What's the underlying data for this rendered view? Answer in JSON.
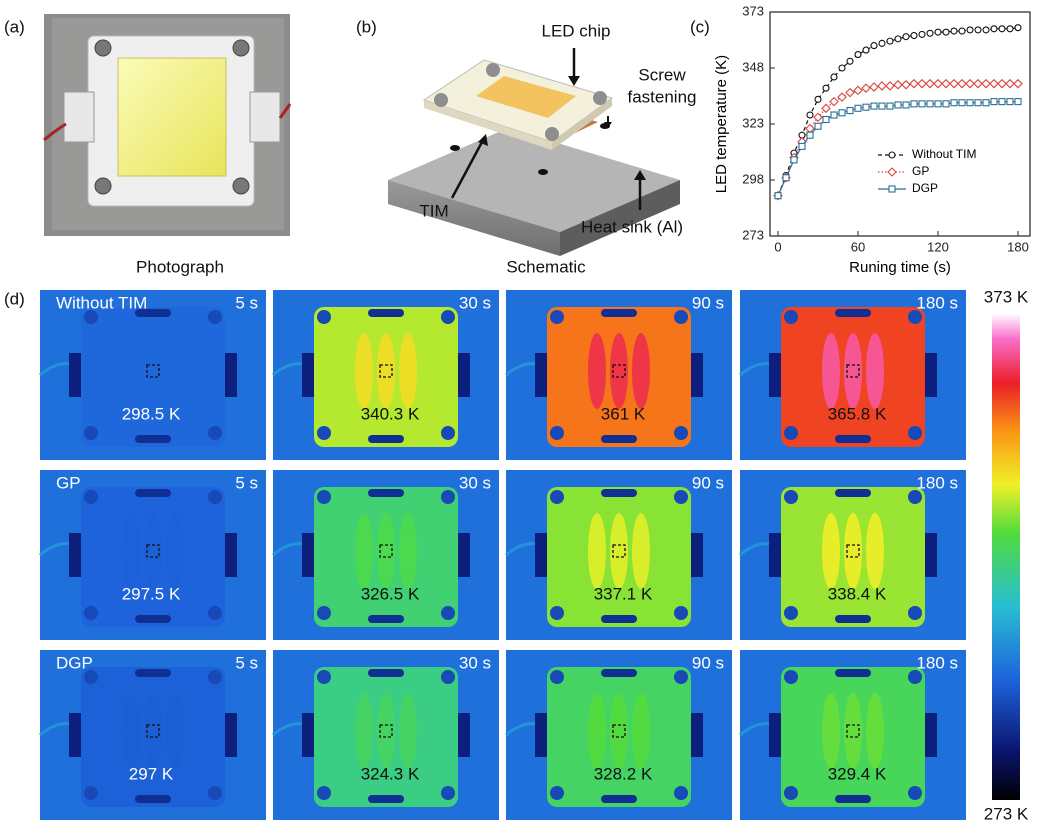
{
  "panel_labels": [
    "(a)",
    "(b)",
    "(c)",
    "(d)"
  ],
  "captions": {
    "photograph": "Photograph",
    "schematic": "Schematic"
  },
  "schematic": {
    "led_chip": "LED chip",
    "screw_line1": "Screw",
    "screw_line2": "fastening",
    "tim": "TIM",
    "heat_sink": "Heat sink (Al)"
  },
  "chart_data": {
    "type": "line",
    "xlabel": "Runing time (s)",
    "ylabel": "LED temperature (K)",
    "x": [
      0,
      6,
      12,
      18,
      24,
      30,
      36,
      42,
      48,
      54,
      60,
      66,
      72,
      78,
      84,
      90,
      96,
      102,
      108,
      114,
      120,
      126,
      132,
      138,
      144,
      150,
      156,
      162,
      168,
      174,
      180
    ],
    "series": [
      {
        "name": "Without TIM",
        "color": "#111111",
        "marker": "circle",
        "line_style": "dashed",
        "values": [
          291,
          300,
          310,
          318,
          327,
          334,
          339,
          344,
          348,
          351,
          354,
          356,
          358,
          359,
          360,
          361,
          362,
          362.5,
          363,
          363.5,
          364,
          364,
          364.5,
          364.5,
          365,
          365,
          365,
          365.5,
          365.5,
          365.5,
          366
        ]
      },
      {
        "name": "GP",
        "color": "#d9453b",
        "marker": "diamond",
        "line_style": "dotted",
        "values": [
          291,
          299,
          308,
          315,
          321,
          326,
          330,
          333,
          335,
          337,
          338,
          339,
          339.5,
          340,
          340,
          340.5,
          340.5,
          341,
          341,
          341,
          341,
          341,
          341,
          341,
          341,
          341,
          341,
          341,
          341,
          341,
          341
        ]
      },
      {
        "name": "DGP",
        "color": "#2a6f97",
        "marker": "square",
        "line_style": "solid",
        "values": [
          291,
          299,
          307,
          313,
          318,
          322,
          325,
          327,
          328,
          329,
          330,
          330.5,
          331,
          331,
          331,
          331.5,
          331.5,
          332,
          332,
          332,
          332,
          332,
          332.5,
          332.5,
          332.5,
          332.5,
          332.5,
          333,
          333,
          333,
          333
        ]
      }
    ],
    "xlim": [
      -6,
      189
    ],
    "ylim": [
      273,
      373
    ],
    "xticks": [
      0,
      60,
      120,
      180
    ],
    "yticks": [
      273,
      298,
      323,
      348,
      373
    ]
  },
  "thermal": {
    "rows": [
      {
        "name": "Without TIM",
        "cells": [
          {
            "time": "5 s",
            "value": 298.5,
            "label": "298.5 K"
          },
          {
            "time": "30 s",
            "value": 340.3,
            "label": "340.3 K"
          },
          {
            "time": "90 s",
            "value": 361,
            "label": "361 K"
          },
          {
            "time": "180 s",
            "value": 365.8,
            "label": "365.8 K"
          }
        ]
      },
      {
        "name": "GP",
        "cells": [
          {
            "time": "5 s",
            "value": 297.5,
            "label": "297.5 K"
          },
          {
            "time": "30 s",
            "value": 326.5,
            "label": "326.5 K"
          },
          {
            "time": "90 s",
            "value": 337.1,
            "label": "337.1 K"
          },
          {
            "time": "180 s",
            "value": 338.4,
            "label": "338.4 K"
          }
        ]
      },
      {
        "name": "DGP",
        "cells": [
          {
            "time": "5 s",
            "value": 297,
            "label": "297 K"
          },
          {
            "time": "30 s",
            "value": 324.3,
            "label": "324.3 K"
          },
          {
            "time": "90 s",
            "value": 328.2,
            "label": "328.2 K"
          },
          {
            "time": "180 s",
            "value": 329.4,
            "label": "329.4 K"
          }
        ]
      }
    ]
  },
  "colorbar": {
    "range": [
      273,
      373
    ],
    "max_label": "373 K",
    "min_label": "273 K"
  }
}
